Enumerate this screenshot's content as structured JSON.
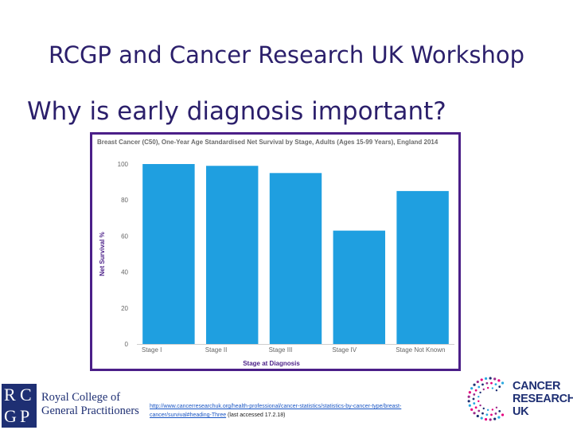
{
  "slide": {
    "title": "RCGP and Cancer Research UK Workshop",
    "subtitle": "Why is early diagnosis important?"
  },
  "chart_data": {
    "type": "bar",
    "title": "Breast Cancer (C50), One-Year Age Standardised Net Survival by Stage, Adults (Ages 15-99 Years), England 2014",
    "xlabel": "Stage at Diagnosis",
    "ylabel": "Net Survival %",
    "categories": [
      "Stage I",
      "Stage II",
      "Stage III",
      "Stage IV",
      "Stage Not Known"
    ],
    "values": [
      100,
      99,
      95,
      63,
      85
    ],
    "ylim": [
      0,
      100
    ],
    "yticks": [
      "0",
      "20",
      "40",
      "60",
      "80",
      "100"
    ],
    "bar_color": "#1f9fe0",
    "grid": false,
    "frame_color": "#4b1f88"
  },
  "footer": {
    "url": "http://www.cancerresearchuk.org/health-professional/cancer-statistics/statistics-by-cancer-type/breast-cancer/survival#heading-Three",
    "note": " (last accessed 17.2.18)"
  },
  "logos": {
    "rcgp": {
      "letters": [
        "R",
        "C",
        "G",
        "P"
      ],
      "line1": "Royal College of",
      "line2": "General Practitioners"
    },
    "cruk": {
      "line1": "CANCER",
      "line2": "RESEARCH",
      "line3": "UK"
    }
  }
}
